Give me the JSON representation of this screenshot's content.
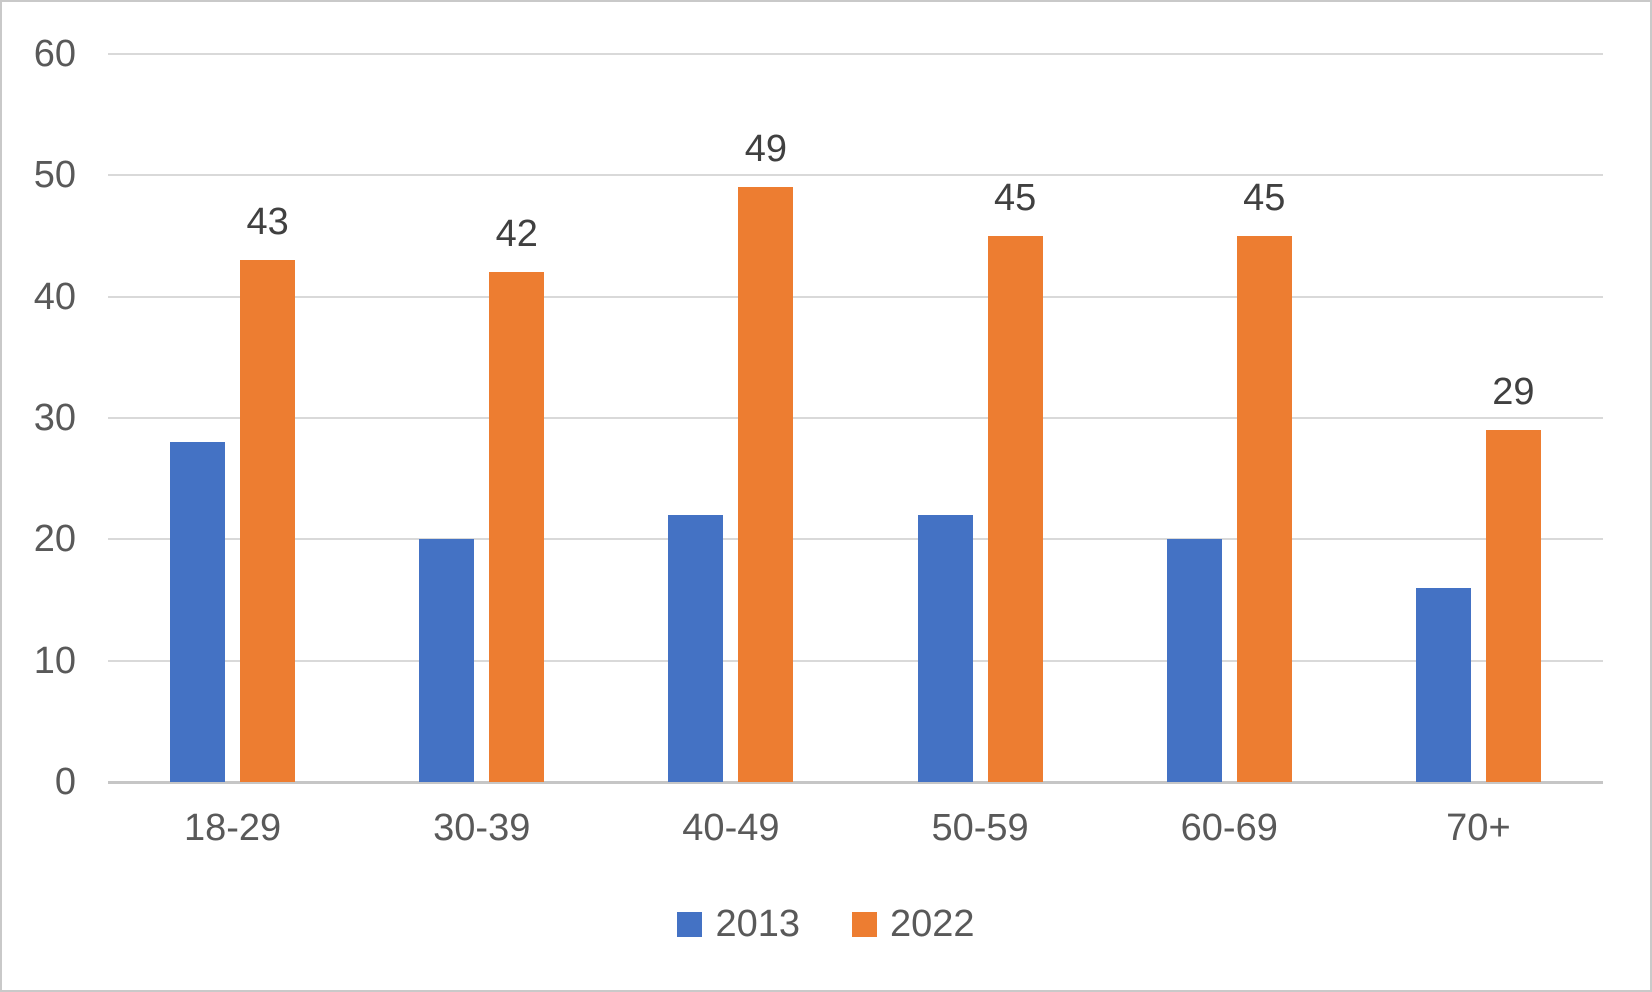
{
  "chart_data": {
    "type": "bar",
    "title": "",
    "categories": [
      "18-29",
      "30-39",
      "40-49",
      "50-59",
      "60-69",
      "70+"
    ],
    "series": [
      {
        "name": "2013",
        "color": "#4472C4",
        "values": [
          28,
          20,
          22,
          22,
          20,
          16
        ],
        "show_data_labels": false
      },
      {
        "name": "2022",
        "color": "#ED7D31",
        "values": [
          43,
          42,
          49,
          45,
          45,
          29
        ],
        "show_data_labels": true
      }
    ],
    "y_axis": {
      "min": 0,
      "max": 60,
      "tick_interval": 10,
      "tick_labels": [
        "0",
        "10",
        "20",
        "30",
        "40",
        "50",
        "60"
      ]
    },
    "grid": true,
    "legend": {
      "position": "bottom",
      "entries": [
        "2013",
        "2022"
      ]
    }
  },
  "style": {
    "axis_text_color": "#595959",
    "data_label_color": "#404040",
    "gridline_color": "#D9D9D9",
    "axis_line_color": "#C6C6C6",
    "border_color": "#C9C9C9",
    "background_color": "#FFFFFF"
  }
}
